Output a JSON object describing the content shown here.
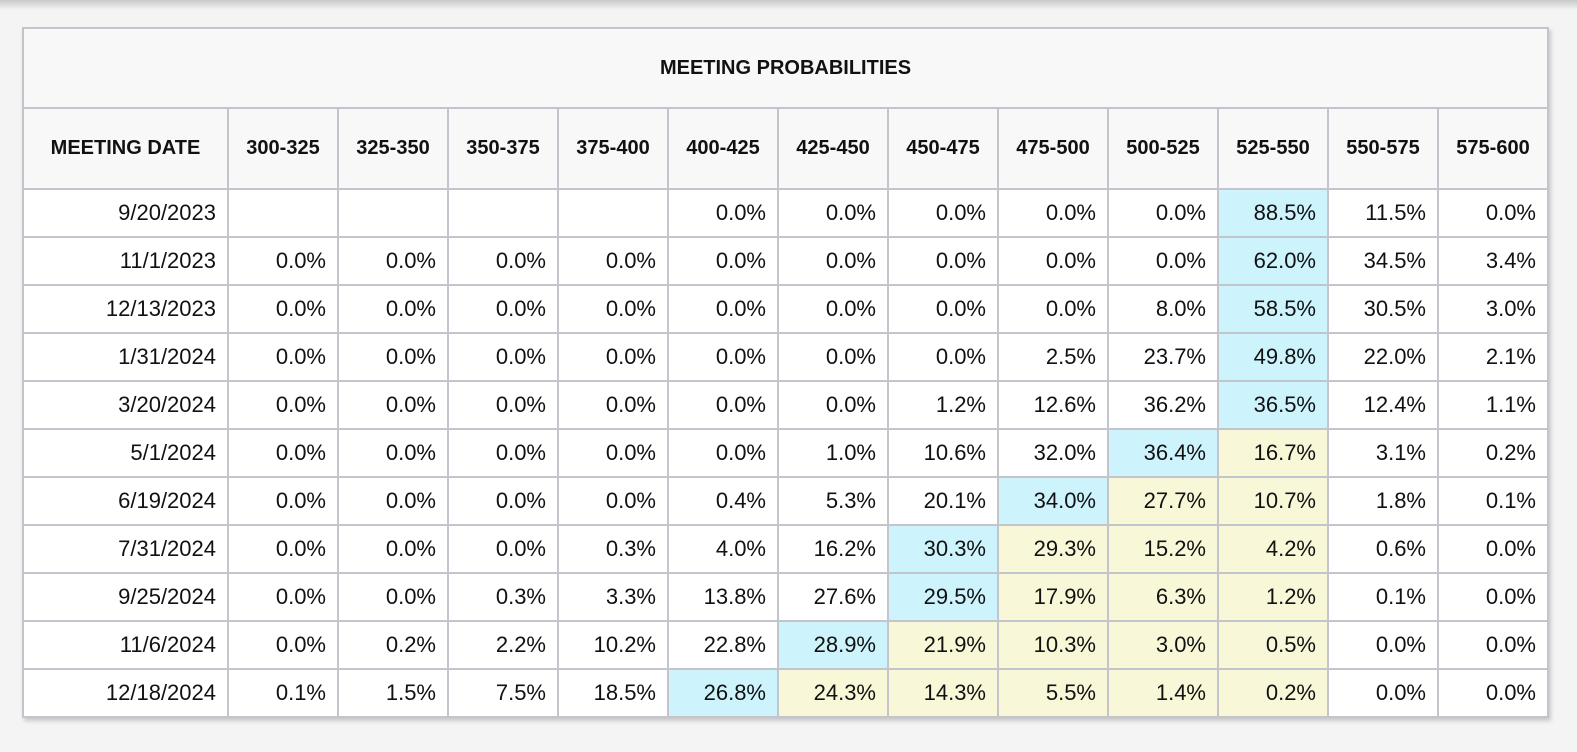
{
  "table": {
    "title": "MEETING PROBABILITIES",
    "headers": [
      "MEETING DATE",
      "300-325",
      "325-350",
      "350-375",
      "375-400",
      "400-425",
      "425-450",
      "450-475",
      "475-500",
      "500-525",
      "525-550",
      "550-575",
      "575-600"
    ],
    "highlight_colors": {
      "blue": "#cdf3fd",
      "yellow": "#f8f8d8"
    },
    "rows": [
      {
        "date": "9/20/2023",
        "values": [
          "",
          "",
          "",
          "",
          "0.0%",
          "0.0%",
          "0.0%",
          "0.0%",
          "0.0%",
          "88.5%",
          "11.5%",
          "0.0%"
        ],
        "hl": [
          "",
          "",
          "",
          "",
          "",
          "",
          "",
          "",
          "",
          "blue",
          "",
          ""
        ]
      },
      {
        "date": "11/1/2023",
        "values": [
          "0.0%",
          "0.0%",
          "0.0%",
          "0.0%",
          "0.0%",
          "0.0%",
          "0.0%",
          "0.0%",
          "0.0%",
          "62.0%",
          "34.5%",
          "3.4%"
        ],
        "hl": [
          "",
          "",
          "",
          "",
          "",
          "",
          "",
          "",
          "",
          "blue",
          "",
          ""
        ]
      },
      {
        "date": "12/13/2023",
        "values": [
          "0.0%",
          "0.0%",
          "0.0%",
          "0.0%",
          "0.0%",
          "0.0%",
          "0.0%",
          "0.0%",
          "8.0%",
          "58.5%",
          "30.5%",
          "3.0%"
        ],
        "hl": [
          "",
          "",
          "",
          "",
          "",
          "",
          "",
          "",
          "",
          "blue",
          "",
          ""
        ]
      },
      {
        "date": "1/31/2024",
        "values": [
          "0.0%",
          "0.0%",
          "0.0%",
          "0.0%",
          "0.0%",
          "0.0%",
          "0.0%",
          "2.5%",
          "23.7%",
          "49.8%",
          "22.0%",
          "2.1%"
        ],
        "hl": [
          "",
          "",
          "",
          "",
          "",
          "",
          "",
          "",
          "",
          "blue",
          "",
          ""
        ]
      },
      {
        "date": "3/20/2024",
        "values": [
          "0.0%",
          "0.0%",
          "0.0%",
          "0.0%",
          "0.0%",
          "0.0%",
          "1.2%",
          "12.6%",
          "36.2%",
          "36.5%",
          "12.4%",
          "1.1%"
        ],
        "hl": [
          "",
          "",
          "",
          "",
          "",
          "",
          "",
          "",
          "",
          "blue",
          "",
          ""
        ]
      },
      {
        "date": "5/1/2024",
        "values": [
          "0.0%",
          "0.0%",
          "0.0%",
          "0.0%",
          "0.0%",
          "1.0%",
          "10.6%",
          "32.0%",
          "36.4%",
          "16.7%",
          "3.1%",
          "0.2%"
        ],
        "hl": [
          "",
          "",
          "",
          "",
          "",
          "",
          "",
          "",
          "blue",
          "yellow",
          "",
          ""
        ]
      },
      {
        "date": "6/19/2024",
        "values": [
          "0.0%",
          "0.0%",
          "0.0%",
          "0.0%",
          "0.4%",
          "5.3%",
          "20.1%",
          "34.0%",
          "27.7%",
          "10.7%",
          "1.8%",
          "0.1%"
        ],
        "hl": [
          "",
          "",
          "",
          "",
          "",
          "",
          "",
          "blue",
          "yellow",
          "yellow",
          "",
          ""
        ]
      },
      {
        "date": "7/31/2024",
        "values": [
          "0.0%",
          "0.0%",
          "0.0%",
          "0.3%",
          "4.0%",
          "16.2%",
          "30.3%",
          "29.3%",
          "15.2%",
          "4.2%",
          "0.6%",
          "0.0%"
        ],
        "hl": [
          "",
          "",
          "",
          "",
          "",
          "",
          "blue",
          "yellow",
          "yellow",
          "yellow",
          "",
          ""
        ]
      },
      {
        "date": "9/25/2024",
        "values": [
          "0.0%",
          "0.0%",
          "0.3%",
          "3.3%",
          "13.8%",
          "27.6%",
          "29.5%",
          "17.9%",
          "6.3%",
          "1.2%",
          "0.1%",
          "0.0%"
        ],
        "hl": [
          "",
          "",
          "",
          "",
          "",
          "",
          "blue",
          "yellow",
          "yellow",
          "yellow",
          "",
          ""
        ]
      },
      {
        "date": "11/6/2024",
        "values": [
          "0.0%",
          "0.2%",
          "2.2%",
          "10.2%",
          "22.8%",
          "28.9%",
          "21.9%",
          "10.3%",
          "3.0%",
          "0.5%",
          "0.0%",
          "0.0%"
        ],
        "hl": [
          "",
          "",
          "",
          "",
          "",
          "blue",
          "yellow",
          "yellow",
          "yellow",
          "yellow",
          "",
          ""
        ]
      },
      {
        "date": "12/18/2024",
        "values": [
          "0.1%",
          "1.5%",
          "7.5%",
          "18.5%",
          "26.8%",
          "24.3%",
          "14.3%",
          "5.5%",
          "1.4%",
          "0.2%",
          "0.0%",
          "0.0%"
        ],
        "hl": [
          "",
          "",
          "",
          "",
          "blue",
          "yellow",
          "yellow",
          "yellow",
          "yellow",
          "yellow",
          "",
          ""
        ]
      }
    ]
  }
}
